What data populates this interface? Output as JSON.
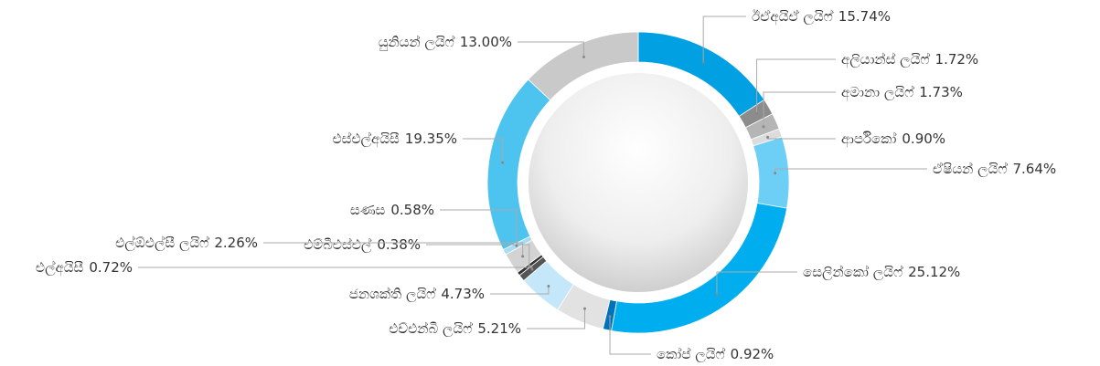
{
  "chart_data": {
    "type": "donut",
    "categories": [
      "ඊඒඅයිඒ ලයිෆ්",
      "අලියාන්ස් ලයිෆ්",
      "අමානා ලයිෆ්",
      "ආර්පිකෝ",
      "ඒෂියන් ලයිෆ්",
      "සෙලින්කෝ ලයිෆ්",
      "කෝප් ලයිෆ්",
      "එච්එන්බී ලයිෆ්",
      "ජනශක්ති ලයිෆ්",
      "එල්අයිසී",
      "එම්බීඑස්එල්",
      "එල්ඕඑල්සී ලයිෆ්",
      "සණස",
      "එස්එල්අයිසී",
      "යුනියන් ලයිෆ්"
    ],
    "values": [
      15.74,
      1.72,
      1.73,
      0.9,
      7.64,
      25.12,
      0.92,
      5.21,
      4.73,
      0.72,
      0.38,
      2.26,
      0.58,
      19.35,
      13.0
    ],
    "value_labels": [
      "15.74%",
      "1.72%",
      "1.73%",
      "0.90%",
      "7.64%",
      "25.12%",
      "0.92%",
      "5.21%",
      "4.73%",
      "0.72%",
      "0.38%",
      "2.26%",
      "0.58%",
      "19.35%",
      "13.00%"
    ],
    "colors": [
      "#00a0e3",
      "#8c8c8c",
      "#b5b5b5",
      "#dcdcdc",
      "#6dcff6",
      "#00aeef",
      "#0072bc",
      "#e2e2e2",
      "#c4e8f9",
      "#555555",
      "#333333",
      "#d3d3d3",
      "#a8dcf3",
      "#4dc3f0",
      "#c9c9c9"
    ]
  }
}
